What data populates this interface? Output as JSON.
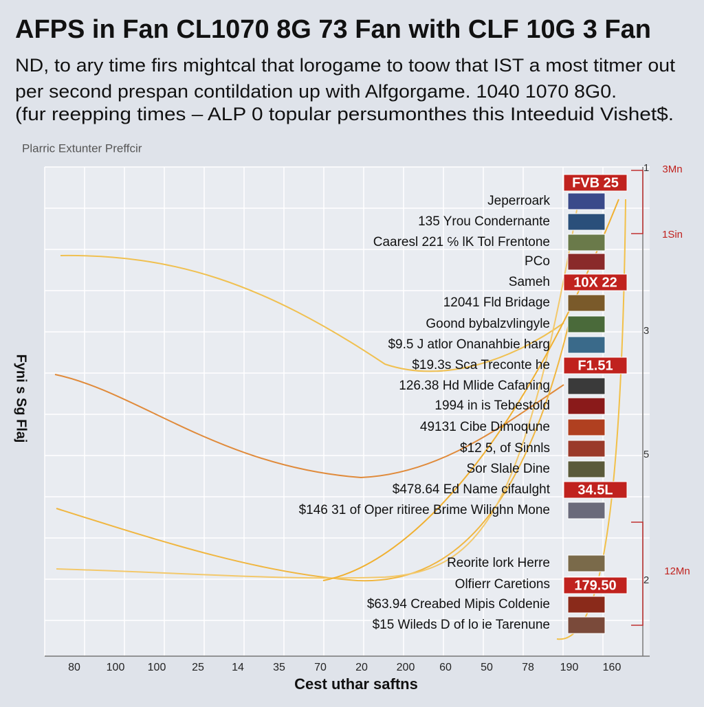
{
  "title": "AFPS in Fan CL1070 8G 73 Fan with CLF 10G 3 Fan",
  "subtitle": [
    "ND, to ary time firs mightcal that lorogame to toow that IST a most titmer out",
    "per second prespan contildation up with Alfgorgame. 1040 1070 8G0.",
    "(fur reepping times – ALP 0 topular persumonthes this Inteeduid Vishet$."
  ],
  "legend_label": "Plarric Extunter Preffcir",
  "y_axis_label": "Fyni s Sg Flaj",
  "x_axis_label": "Cest uthar saftns",
  "x_tick_labels": [
    "80",
    "100",
    "100",
    "25",
    "14",
    "35",
    "70",
    "20",
    "200",
    "60",
    "50",
    "78",
    "190",
    "160"
  ],
  "items": [
    "Jeperroark",
    "135 Yrou Condernante",
    "Caaresl 221 ℅ lK Tol Frentone",
    "PCo",
    "Sameh",
    "12041 Fld Bridage",
    "Goond bybalzvlingyle",
    "$9.5 J atlor Onanahbie harg",
    "$19.3s Sca Treconte he",
    "126.38 Hd Mlide Cafaning",
    "1994 in is Tebestold",
    "49131 Cibe Dimoqune",
    "$12 5, of Sinnls",
    "Sor Slale Dine",
    "$478.64 Ed Name cifaulght",
    "$146 31 of Oper ritiree Brime Wilighn Mone",
    "Reorite lork Herre",
    "Olfierr Caretions",
    "$63.94 Creabed Mipis Coldenie",
    "$15 Wileds D of lo ie Tarenune"
  ],
  "badges": [
    "FVB 25",
    "10X 22",
    "F1.51",
    "34.5L",
    "179.50"
  ],
  "right_labels": [
    "1",
    "3Mn",
    "1Sin",
    "3",
    "5",
    "12Mn",
    "2"
  ]
}
